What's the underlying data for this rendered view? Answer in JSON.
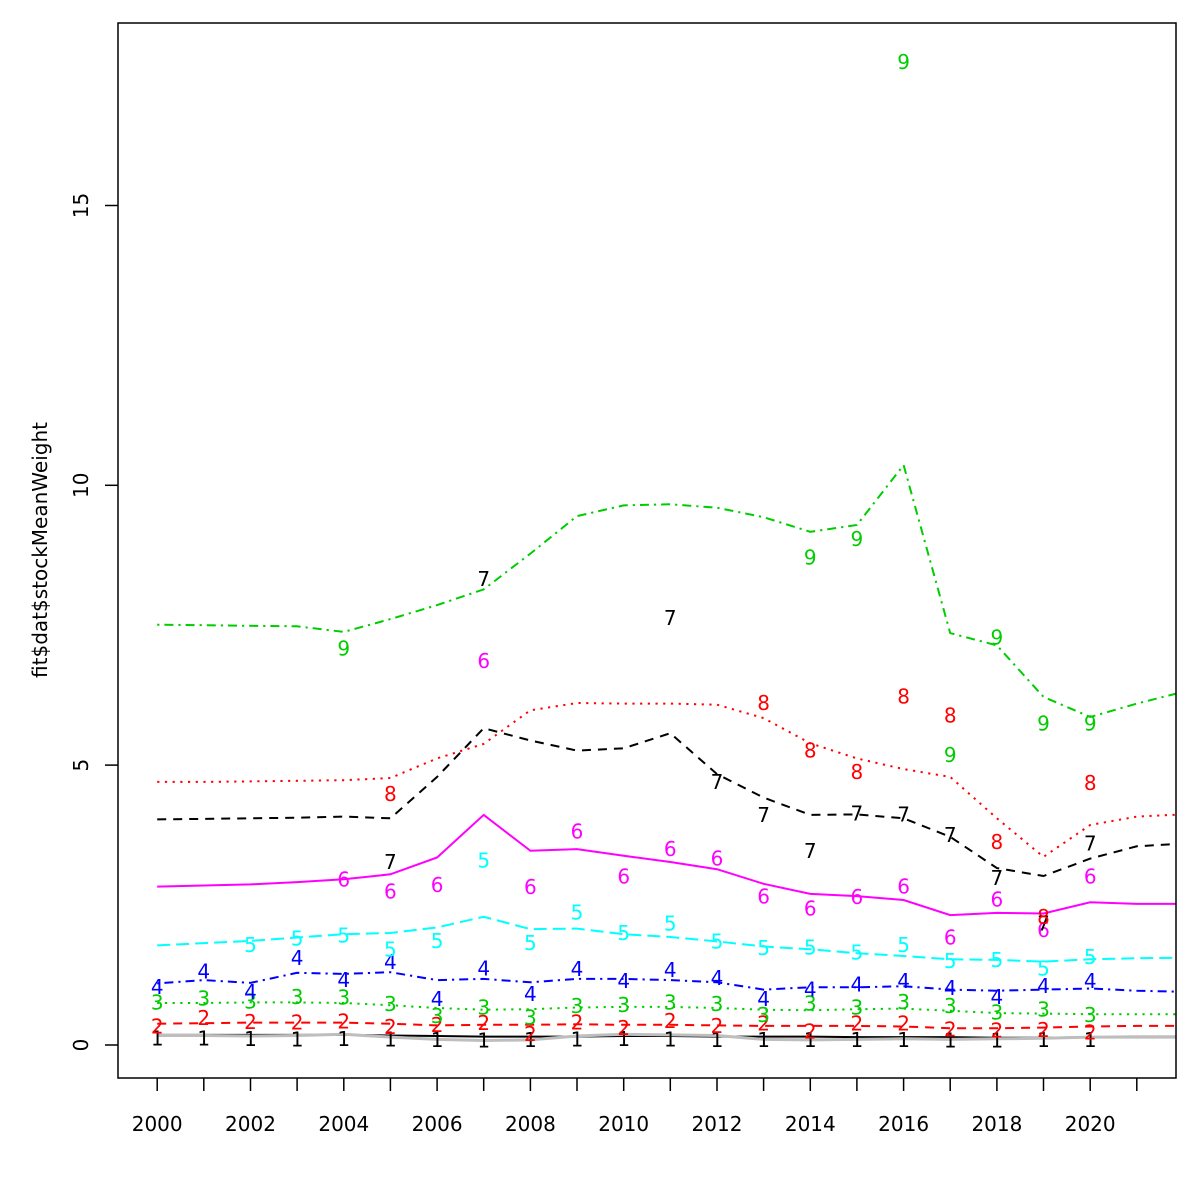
{
  "chart_data": {
    "type": "line",
    "title": "",
    "xlabel": "",
    "ylabel": "fit$dat$stockMeanWeight",
    "grid": false,
    "legend": "none (series identified by colored digit labels)",
    "xlim": [
      1999.16,
      2021.84
    ],
    "ylim": [
      -0.59,
      18.26
    ],
    "y_ticks": [
      0,
      5,
      10,
      15
    ],
    "x_ticks": [
      {
        "year": 2000,
        "label": "2000"
      },
      {
        "year": 2001,
        "label": ""
      },
      {
        "year": 2002,
        "label": "2002"
      },
      {
        "year": 2003,
        "label": ""
      },
      {
        "year": 2004,
        "label": "2004"
      },
      {
        "year": 2005,
        "label": ""
      },
      {
        "year": 2006,
        "label": "2006"
      },
      {
        "year": 2007,
        "label": ""
      },
      {
        "year": 2008,
        "label": "2008"
      },
      {
        "year": 2009,
        "label": ""
      },
      {
        "year": 2010,
        "label": "2010"
      },
      {
        "year": 2011,
        "label": ""
      },
      {
        "year": 2012,
        "label": "2012"
      },
      {
        "year": 2013,
        "label": ""
      },
      {
        "year": 2014,
        "label": "2014"
      },
      {
        "year": 2015,
        "label": ""
      },
      {
        "year": 2016,
        "label": "2016"
      },
      {
        "year": 2017,
        "label": ""
      },
      {
        "year": 2018,
        "label": "2018"
      },
      {
        "year": 2019,
        "label": ""
      },
      {
        "year": 2020,
        "label": "2020"
      },
      {
        "year": 2021,
        "label": ""
      }
    ],
    "line_start_year": 2000,
    "extra_lines": [
      {
        "name": "gray-baseline",
        "color": "#BEBEBE",
        "width": 3,
        "linetype": "solid",
        "values": [
          0.17,
          0.17,
          0.16,
          0.17,
          0.19,
          0.14,
          0.1,
          0.08,
          0.09,
          0.16,
          0.19,
          0.18,
          0.17,
          0.1,
          0.09,
          0.1,
          0.11,
          0.1,
          0.11,
          0.12,
          0.14,
          0.14,
          0.14
        ]
      }
    ],
    "series": [
      {
        "name": "age-1",
        "label": "1",
        "color": "#000000",
        "linetype": "solid",
        "line_values": [
          0.18,
          0.18,
          0.18,
          0.18,
          0.18,
          0.17,
          0.16,
          0.15,
          0.15,
          0.15,
          0.16,
          0.16,
          0.15,
          0.15,
          0.15,
          0.14,
          0.14,
          0.14,
          0.13,
          0.13,
          0.14,
          0.15,
          0.15
        ],
        "obs_years": [
          2000,
          2001,
          2002,
          2003,
          2004,
          2005,
          2006,
          2007,
          2008,
          2009,
          2010,
          2011,
          2012,
          2013,
          2014,
          2015,
          2016,
          2017,
          2018,
          2019,
          2020
        ],
        "obs_values": [
          0.12,
          0.12,
          0.11,
          0.1,
          0.11,
          0.1,
          0.09,
          0.08,
          0.09,
          0.1,
          0.11,
          0.1,
          0.09,
          0.09,
          0.09,
          0.09,
          0.09,
          0.08,
          0.08,
          0.09,
          0.09
        ]
      },
      {
        "name": "age-2",
        "label": "2",
        "color": "#FF0000",
        "linetype": "dashed",
        "line_values": [
          0.38,
          0.39,
          0.4,
          0.4,
          0.4,
          0.38,
          0.35,
          0.36,
          0.36,
          0.37,
          0.36,
          0.36,
          0.35,
          0.34,
          0.34,
          0.34,
          0.33,
          0.3,
          0.3,
          0.31,
          0.33,
          0.34,
          0.34
        ],
        "obs_years": [
          2000,
          2001,
          2002,
          2003,
          2004,
          2005,
          2006,
          2007,
          2008,
          2009,
          2010,
          2011,
          2012,
          2013,
          2014,
          2015,
          2016,
          2017,
          2018,
          2019,
          2020
        ],
        "obs_values": [
          0.33,
          0.48,
          0.41,
          0.4,
          0.42,
          0.32,
          0.36,
          0.39,
          0.2,
          0.4,
          0.3,
          0.43,
          0.34,
          0.38,
          0.24,
          0.38,
          0.38,
          0.28,
          0.26,
          0.27,
          0.22
        ]
      },
      {
        "name": "age-3",
        "label": "3",
        "color": "#00CD00",
        "linetype": "dotted",
        "line_values": [
          0.75,
          0.75,
          0.76,
          0.76,
          0.75,
          0.71,
          0.66,
          0.63,
          0.64,
          0.67,
          0.68,
          0.68,
          0.66,
          0.63,
          0.62,
          0.64,
          0.65,
          0.61,
          0.57,
          0.56,
          0.55,
          0.55,
          0.55
        ],
        "obs_years": [
          2000,
          2001,
          2002,
          2003,
          2004,
          2005,
          2006,
          2007,
          2008,
          2009,
          2010,
          2011,
          2012,
          2013,
          2014,
          2015,
          2016,
          2017,
          2018,
          2019,
          2020
        ],
        "obs_values": [
          0.76,
          0.83,
          0.78,
          0.86,
          0.85,
          0.73,
          0.52,
          0.67,
          0.49,
          0.7,
          0.71,
          0.76,
          0.73,
          0.54,
          0.74,
          0.67,
          0.77,
          0.7,
          0.58,
          0.63,
          0.54
        ]
      },
      {
        "name": "age-4",
        "label": "4",
        "color": "#0000FF",
        "linetype": "dashdot",
        "line_values": [
          1.1,
          1.16,
          1.11,
          1.29,
          1.27,
          1.3,
          1.16,
          1.18,
          1.12,
          1.18,
          1.18,
          1.16,
          1.12,
          0.99,
          1.03,
          1.03,
          1.05,
          0.99,
          0.97,
          0.99,
          1.01,
          0.97,
          0.95
        ],
        "obs_years": [
          2000,
          2001,
          2002,
          2003,
          2004,
          2005,
          2006,
          2007,
          2008,
          2009,
          2010,
          2011,
          2012,
          2013,
          2014,
          2015,
          2016,
          2017,
          2018,
          2019,
          2020
        ],
        "obs_values": [
          1.04,
          1.31,
          0.95,
          1.55,
          1.16,
          1.48,
          0.82,
          1.37,
          0.91,
          1.36,
          1.14,
          1.34,
          1.2,
          0.82,
          0.99,
          1.08,
          1.14,
          1.02,
          0.86,
          1.05,
          1.14
        ]
      },
      {
        "name": "age-5",
        "label": "5",
        "color": "#00FFFF",
        "linetype": "longdash",
        "line_values": [
          1.78,
          1.82,
          1.86,
          1.92,
          1.98,
          2.0,
          2.1,
          2.29,
          2.07,
          2.08,
          1.98,
          1.93,
          1.85,
          1.76,
          1.71,
          1.64,
          1.59,
          1.53,
          1.52,
          1.49,
          1.53,
          1.55,
          1.56
        ],
        "obs_years": [
          2002,
          2003,
          2004,
          2005,
          2006,
          2007,
          2008,
          2009,
          2010,
          2011,
          2012,
          2013,
          2014,
          2015,
          2016,
          2017,
          2018,
          2019,
          2020
        ],
        "obs_values": [
          1.79,
          1.9,
          1.96,
          1.71,
          1.86,
          3.3,
          1.82,
          2.37,
          2.0,
          2.17,
          1.85,
          1.73,
          1.74,
          1.65,
          1.79,
          1.5,
          1.52,
          1.37,
          1.57
        ]
      },
      {
        "name": "age-6",
        "label": "6",
        "color": "#FF00FF",
        "linetype": "solid",
        "line_values": [
          2.83,
          2.85,
          2.87,
          2.91,
          2.96,
          3.05,
          3.35,
          4.11,
          3.47,
          3.5,
          3.38,
          3.27,
          3.14,
          2.88,
          2.7,
          2.66,
          2.59,
          2.32,
          2.36,
          2.35,
          2.55,
          2.52,
          2.52
        ],
        "obs_years": [
          2004,
          2005,
          2006,
          2007,
          2008,
          2009,
          2010,
          2011,
          2012,
          2013,
          2014,
          2015,
          2016,
          2017,
          2018,
          2019,
          2020
        ],
        "obs_values": [
          2.96,
          2.74,
          2.86,
          6.86,
          2.82,
          3.81,
          3.01,
          3.5,
          3.33,
          2.65,
          2.44,
          2.64,
          2.83,
          1.92,
          2.6,
          2.05,
          3.01
        ]
      },
      {
        "name": "age-7",
        "label": "7",
        "color": "#000000",
        "linetype": "dashed",
        "line_values": [
          4.03,
          4.04,
          4.05,
          4.06,
          4.08,
          4.05,
          4.79,
          5.66,
          5.44,
          5.26,
          5.3,
          5.57,
          4.84,
          4.42,
          4.11,
          4.12,
          4.05,
          3.72,
          3.16,
          3.02,
          3.33,
          3.55,
          3.6
        ],
        "obs_years": [
          2005,
          2007,
          2011,
          2012,
          2013,
          2014,
          2015,
          2016,
          2017,
          2018,
          2019,
          2020
        ],
        "obs_values": [
          3.27,
          8.33,
          7.63,
          4.7,
          4.11,
          3.47,
          4.14,
          4.12,
          3.75,
          2.98,
          2.17,
          3.6
        ]
      },
      {
        "name": "age-8",
        "label": "8",
        "color": "#FF0000",
        "linetype": "dotted",
        "line_values": [
          4.7,
          4.7,
          4.71,
          4.72,
          4.73,
          4.77,
          5.12,
          5.38,
          5.98,
          6.11,
          6.1,
          6.1,
          6.08,
          5.84,
          5.39,
          5.12,
          4.93,
          4.79,
          4.05,
          3.36,
          3.93,
          4.08,
          4.12
        ],
        "obs_years": [
          2005,
          2013,
          2014,
          2015,
          2016,
          2017,
          2018,
          2019,
          2020
        ],
        "obs_values": [
          4.48,
          6.11,
          5.26,
          4.88,
          6.23,
          5.89,
          3.63,
          2.29,
          4.68
        ]
      },
      {
        "name": "age-9",
        "label": "9",
        "color": "#00CD00",
        "linetype": "dashdot",
        "line_values": [
          7.51,
          7.5,
          7.49,
          7.48,
          7.38,
          7.61,
          7.86,
          8.14,
          8.78,
          9.45,
          9.64,
          9.66,
          9.6,
          9.43,
          9.17,
          9.29,
          10.36,
          7.36,
          7.14,
          6.22,
          5.86,
          6.1,
          6.31
        ],
        "obs_years": [
          2004,
          2014,
          2015,
          2016,
          2017,
          2018,
          2019,
          2020
        ],
        "obs_values": [
          7.08,
          8.71,
          9.04,
          17.56,
          5.18,
          7.28,
          5.74,
          5.74
        ]
      }
    ]
  }
}
